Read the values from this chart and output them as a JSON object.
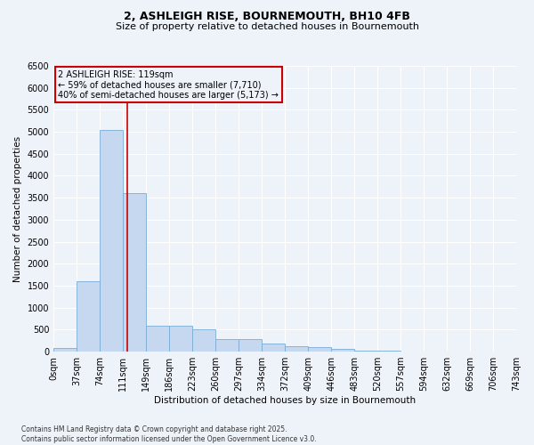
{
  "title_line1": "2, ASHLEIGH RISE, BOURNEMOUTH, BH10 4FB",
  "title_line2": "Size of property relative to detached houses in Bournemouth",
  "xlabel": "Distribution of detached houses by size in Bournemouth",
  "ylabel": "Number of detached properties",
  "footnote": "Contains HM Land Registry data © Crown copyright and database right 2025.\nContains public sector information licensed under the Open Government Licence v3.0.",
  "annotation_text": "2 ASHLEIGH RISE: 119sqm\n← 59% of detached houses are smaller (7,710)\n40% of semi-detached houses are larger (5,173) →",
  "property_line_x": 119,
  "bar_edges": [
    0,
    37,
    74,
    111,
    149,
    186,
    223,
    260,
    297,
    334,
    372,
    409,
    446,
    483,
    520,
    557,
    594,
    632,
    669,
    706,
    743
  ],
  "bar_heights": [
    75,
    1600,
    5050,
    3600,
    580,
    580,
    500,
    280,
    280,
    175,
    130,
    100,
    65,
    30,
    20,
    10,
    5,
    3,
    2,
    1
  ],
  "bar_color": "#c5d8ef",
  "bar_edge_color": "#7aadd4",
  "vline_color": "#cc0000",
  "annotation_box_color": "#cc0000",
  "background_color": "#eef2f9",
  "grid_color": "#ffffff",
  "ylim": [
    0,
    6500
  ],
  "yticks": [
    0,
    500,
    1000,
    1500,
    2000,
    2500,
    3000,
    3500,
    4000,
    4500,
    5000,
    5500,
    6000,
    6500
  ],
  "title_fontsize": 9,
  "subtitle_fontsize": 8,
  "tick_fontsize": 7,
  "label_fontsize": 7.5,
  "footnote_fontsize": 5.5
}
